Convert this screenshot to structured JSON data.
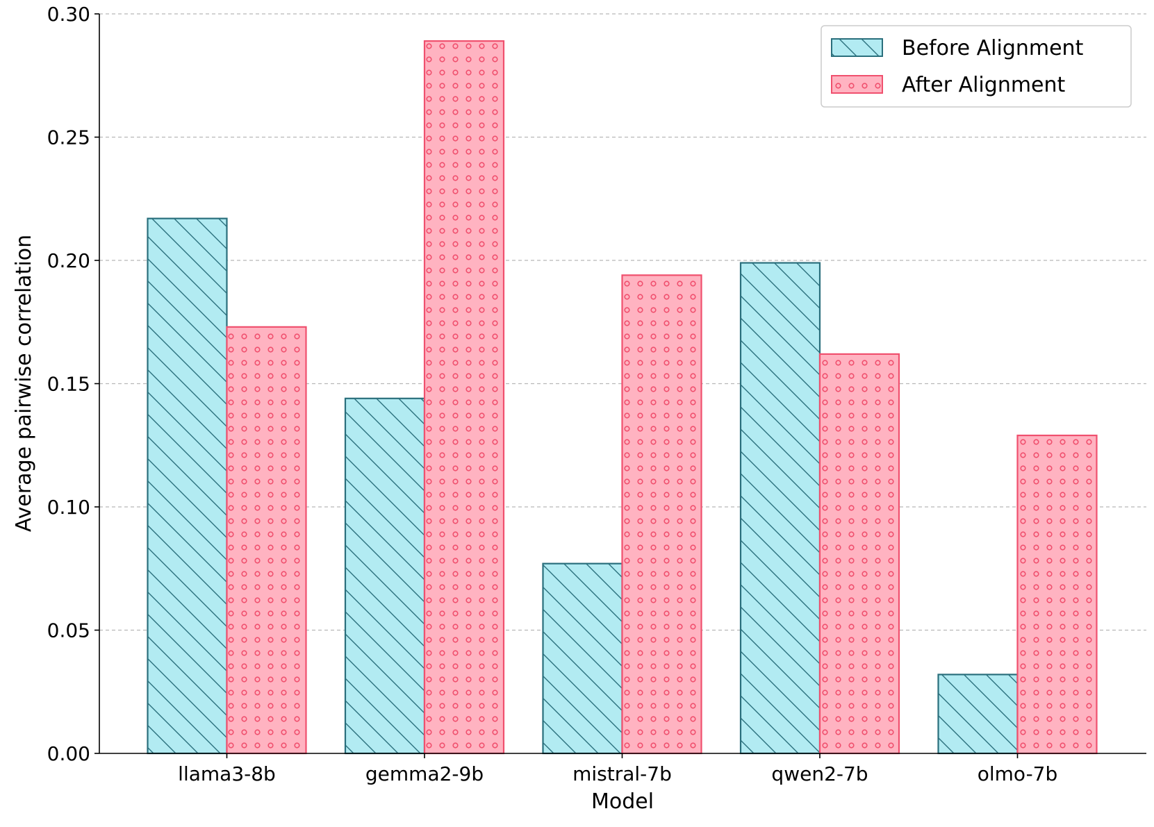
{
  "chart_data": {
    "type": "bar",
    "title": "",
    "xlabel": "Model",
    "ylabel": "Average pairwise correlation",
    "categories": [
      "llama3-8b",
      "gemma2-9b",
      "mistral-7b",
      "qwen2-7b",
      "olmo-7b"
    ],
    "series": [
      {
        "name": "Before Alignment",
        "values": [
          0.217,
          0.144,
          0.077,
          0.199,
          0.032
        ],
        "fill": "#b2ebf2",
        "stroke": "#2a6f7c",
        "pattern": "diagonal-hatch"
      },
      {
        "name": "After Alignment",
        "values": [
          0.173,
          0.289,
          0.194,
          0.162,
          0.129
        ],
        "fill": "#ffb3c1",
        "stroke": "#f0506e",
        "pattern": "small-circles"
      }
    ],
    "ylim": [
      0,
      0.3
    ],
    "yticks": [
      0.0,
      0.05,
      0.1,
      0.15,
      0.2,
      0.25,
      0.3
    ],
    "ytick_labels": [
      "0.00",
      "0.05",
      "0.10",
      "0.15",
      "0.20",
      "0.25",
      "0.30"
    ],
    "grid": "y-dashed",
    "legend": {
      "position": "top-right",
      "entries": [
        "Before Alignment",
        "After Alignment"
      ]
    }
  }
}
